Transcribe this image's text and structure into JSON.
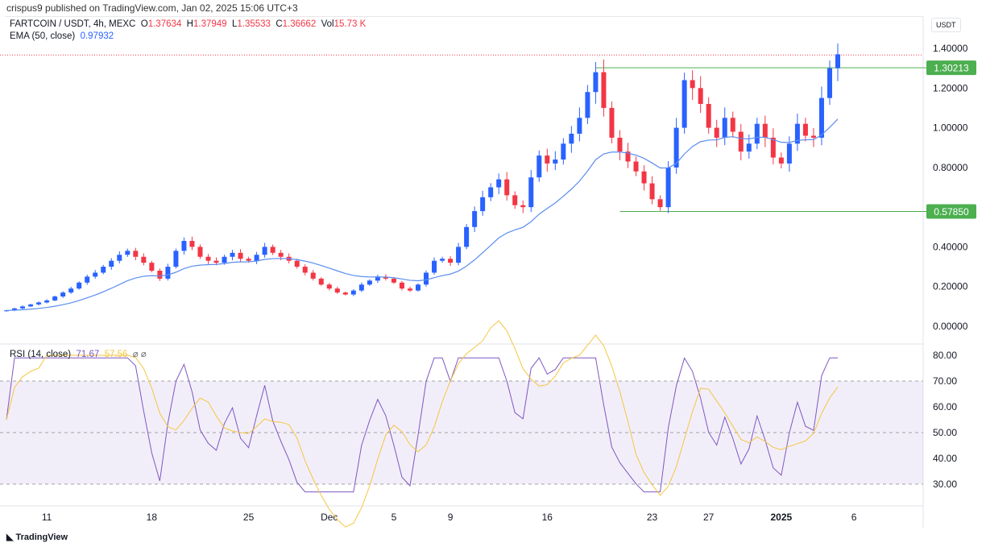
{
  "header": {
    "published": "crispus9 published on TradingView.com, Jan 02, 2025 15:06 UTC+3",
    "symbol": "FARTCOIN / USDT, 4h, MEXC",
    "o_label": "O",
    "o": "1.37634",
    "h_label": "H",
    "h": "1.37949",
    "l_label": "L",
    "l": "1.35533",
    "c_label": "C",
    "c": "1.36662",
    "vol_label": "Vol",
    "vol": "15.73 K",
    "ema_label": "EMA (50, close)",
    "ema_value": "0.97932"
  },
  "rsi": {
    "label": "RSI (14, close)",
    "value": "71.67",
    "ma_value": "57.56",
    "extra": "⌀ ⌀"
  },
  "currency": "USDT",
  "footer": "TradingView",
  "colors": {
    "up": "#2962ff",
    "down": "#f23645",
    "ema": "#5b8def",
    "rsi": "#7e57c2",
    "rsi_ma": "#f5c542",
    "level": "#4caf50"
  },
  "chart_data": {
    "type": "candlestick",
    "title": "FARTCOIN / USDT, 4h, MEXC",
    "ylim": [
      -0.05,
      1.5
    ],
    "y_ticks": [
      "1.40000",
      "1.20000",
      "1.00000",
      "0.80000",
      "0.40000",
      "0.20000",
      "0.00000"
    ],
    "y_tick_values": [
      1.4,
      1.2,
      1.0,
      0.8,
      0.4,
      0.2,
      0.0
    ],
    "x_ticks": [
      "11",
      "18",
      "25",
      "Dec",
      "5",
      "9",
      "16",
      "23",
      "27",
      "2025",
      "6"
    ],
    "x_tick_index": [
      5,
      18,
      30,
      40,
      48,
      55,
      67,
      80,
      87,
      96,
      105
    ],
    "levels": [
      {
        "label": "1.30213",
        "value": 1.30213,
        "start_index": 73
      },
      {
        "label": "0.57850",
        "value": 0.5785,
        "start_index": 76
      }
    ],
    "last_price": 1.36662,
    "closes": [
      0.08,
      0.09,
      0.1,
      0.11,
      0.12,
      0.13,
      0.15,
      0.17,
      0.19,
      0.22,
      0.25,
      0.27,
      0.3,
      0.33,
      0.36,
      0.38,
      0.35,
      0.32,
      0.28,
      0.24,
      0.3,
      0.38,
      0.43,
      0.4,
      0.35,
      0.33,
      0.32,
      0.35,
      0.37,
      0.34,
      0.33,
      0.36,
      0.4,
      0.37,
      0.35,
      0.33,
      0.3,
      0.27,
      0.24,
      0.21,
      0.19,
      0.17,
      0.16,
      0.18,
      0.21,
      0.23,
      0.25,
      0.24,
      0.22,
      0.19,
      0.18,
      0.21,
      0.27,
      0.33,
      0.34,
      0.32,
      0.4,
      0.5,
      0.58,
      0.65,
      0.7,
      0.74,
      0.66,
      0.61,
      0.6,
      0.75,
      0.86,
      0.82,
      0.84,
      0.92,
      0.97,
      1.05,
      1.18,
      1.28,
      1.1,
      0.95,
      0.88,
      0.83,
      0.78,
      0.72,
      0.64,
      0.6,
      0.8,
      1.0,
      1.24,
      1.2,
      1.12,
      1.0,
      0.95,
      1.05,
      0.98,
      0.88,
      0.92,
      1.02,
      0.95,
      0.85,
      0.82,
      0.92,
      1.02,
      0.96,
      0.95,
      1.15,
      1.3,
      1.37
    ],
    "ema_period": 50,
    "rsi": {
      "period": 14,
      "ma_period": 14,
      "ylim": [
        25,
        82
      ],
      "y_ticks": [
        "80.00",
        "70.00",
        "60.00",
        "50.00",
        "40.00",
        "30.00"
      ],
      "y_tick_values": [
        80,
        70,
        60,
        50,
        40,
        30
      ],
      "band": [
        30,
        70
      ]
    }
  }
}
